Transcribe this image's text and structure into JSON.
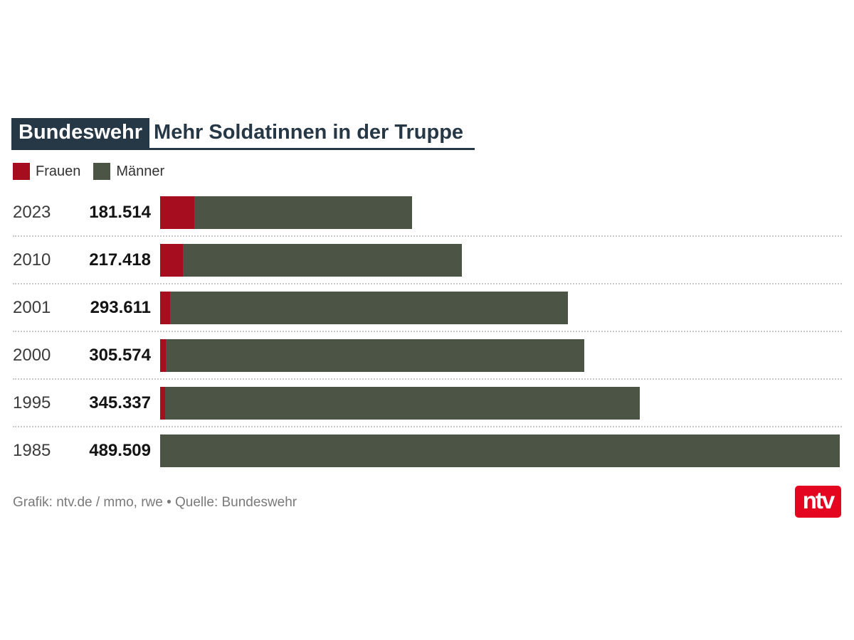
{
  "header": {
    "badge": "Bundeswehr",
    "title": "Mehr Soldatinnen in der Truppe",
    "accent_color": "#263745"
  },
  "legend": [
    {
      "label": "Frauen",
      "color": "#a60e1f"
    },
    {
      "label": "Männer",
      "color": "#4c5446"
    }
  ],
  "chart_data": {
    "type": "bar",
    "orientation": "horizontal",
    "stacked": true,
    "title": "Bundeswehr — Mehr Soldatinnen in der Truppe",
    "categories": [
      "2023",
      "2010",
      "2001",
      "2000",
      "1995",
      "1985"
    ],
    "total_labels": [
      "181.514",
      "217.418",
      "293.611",
      "305.574",
      "345.337",
      "489.509"
    ],
    "totals": [
      181514,
      217418,
      293611,
      305574,
      345337,
      489509
    ],
    "series": [
      {
        "name": "Frauen",
        "color": "#a60e1f",
        "values_estimated_from_bar_widths": true,
        "values": [
          24600,
          16400,
          7200,
          4100,
          3600,
          0
        ]
      },
      {
        "name": "Männer",
        "color": "#4c5446",
        "values": [
          156914,
          201018,
          286411,
          301474,
          341737,
          489509
        ]
      }
    ],
    "xlim": [
      0,
      489509
    ],
    "grid": false,
    "legend_position": "top-left",
    "row_separator": "dotted"
  },
  "footer": {
    "credit": "Grafik: ntv.de / mmo, rwe • Quelle: Bundeswehr",
    "logo_text": "ntv",
    "logo_color": "#e40521"
  }
}
